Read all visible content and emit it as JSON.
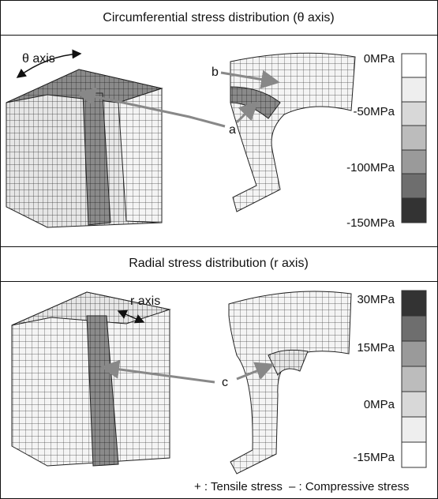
{
  "panels": [
    {
      "title": "Circumferential stress distribution (θ axis)",
      "axis_label": "θ axis",
      "callouts": [
        "b",
        "a"
      ],
      "legend": [
        "0MPa",
        "-50MPa",
        "-100MPa",
        "-150MPa"
      ]
    },
    {
      "title": "Radial stress distribution (r axis)",
      "axis_label": "r axis",
      "callouts": [
        "c"
      ],
      "legend": [
        "30MPa",
        "15MPa",
        "0MPa",
        "-15MPa"
      ]
    }
  ],
  "footer": [
    "+ : Tensile stress",
    "– : Compressive stress"
  ]
}
